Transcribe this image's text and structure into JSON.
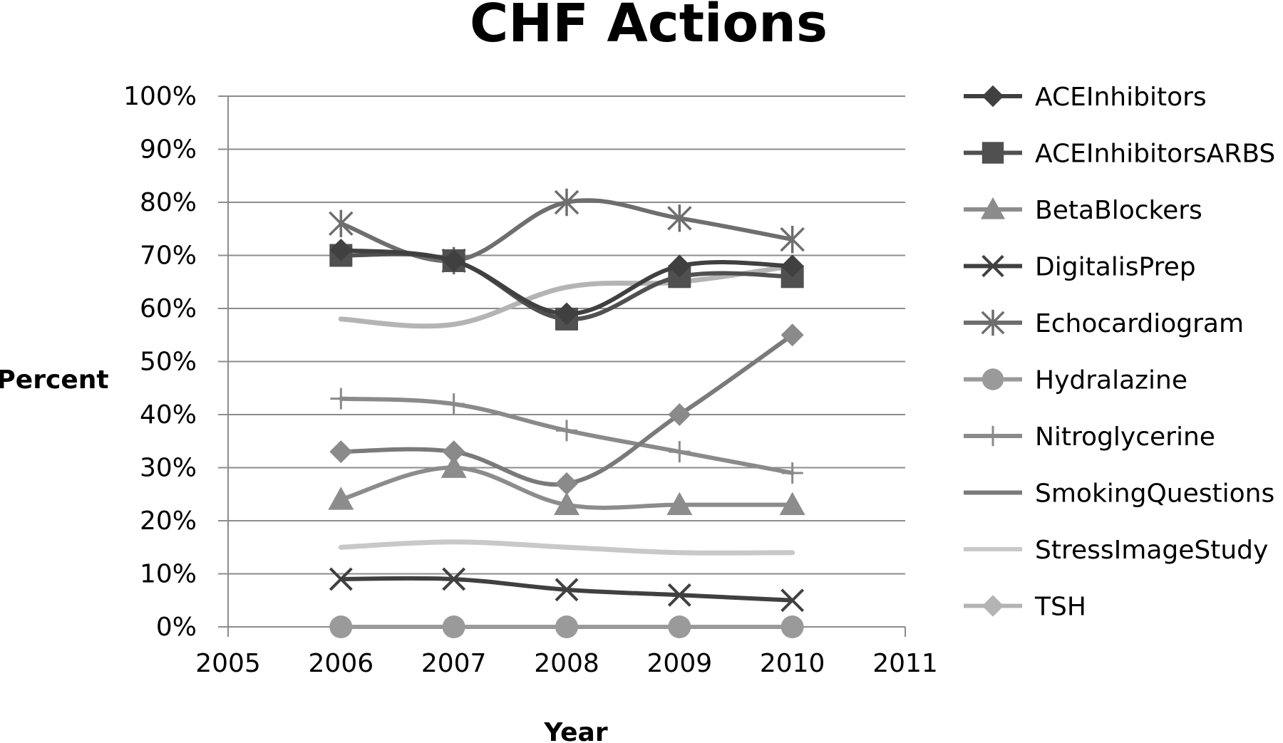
{
  "chart_data": {
    "type": "line",
    "title": "CHF Actions",
    "xlabel": "Year",
    "ylabel": "Percent",
    "xlim": [
      2005,
      2011
    ],
    "xticks": [
      "2005",
      "2006",
      "2007",
      "2008",
      "2009",
      "2010",
      "2011"
    ],
    "ylim": [
      0,
      100
    ],
    "yticks": [
      "0%",
      "10%",
      "20%",
      "30%",
      "40%",
      "50%",
      "60%",
      "70%",
      "80%",
      "90%",
      "100%"
    ],
    "grid": "horizontal",
    "legend": "right",
    "x": [
      2006,
      2007,
      2008,
      2009,
      2010
    ],
    "series": [
      {
        "name": "ACEInhibitors",
        "values": [
          71,
          69,
          59,
          68,
          68
        ],
        "color": "#404040",
        "marker": "diamond"
      },
      {
        "name": "ACEInhibitorsARBS",
        "values": [
          70,
          69,
          58,
          66,
          66
        ],
        "color": "#505050",
        "marker": "square"
      },
      {
        "name": "BetaBlockers",
        "values": [
          24,
          30,
          23,
          23,
          23
        ],
        "color": "#8c8c8c",
        "marker": "triangle"
      },
      {
        "name": "DigitalisPrep",
        "values": [
          9,
          9,
          7,
          6,
          5
        ],
        "color": "#404040",
        "marker": "x"
      },
      {
        "name": "Echocardiogram",
        "values": [
          76,
          69,
          80,
          77,
          73
        ],
        "color": "#6e6e6e",
        "marker": "asterisk"
      },
      {
        "name": "Hydralazine",
        "values": [
          0,
          0,
          0,
          0,
          0
        ],
        "color": "#9a9a9a",
        "marker": "circle"
      },
      {
        "name": "Nitroglycerine",
        "values": [
          43,
          42,
          37,
          33,
          29
        ],
        "color": "#8a8a8a",
        "marker": "plus"
      },
      {
        "name": "SmokingQuestions",
        "values": [
          33,
          33,
          27,
          40,
          55
        ],
        "color": "#7a7a7a",
        "marker": "none"
      },
      {
        "name": "StressImageStudy",
        "values": [
          15,
          16,
          15,
          14,
          14
        ],
        "color": "#c8c8c8",
        "marker": "none"
      },
      {
        "name": "TSH",
        "values": [
          58,
          57,
          64,
          65,
          68
        ],
        "color": "#b4b4b4",
        "marker": "none"
      }
    ],
    "overlay_markers": [
      {
        "series": "SmokingQuestions",
        "marker": "diamond",
        "color": "#8a8a8a",
        "values": [
          33,
          33,
          27,
          40,
          55
        ]
      }
    ],
    "legend_marker_override": {
      "TSH": "diamond"
    }
  }
}
